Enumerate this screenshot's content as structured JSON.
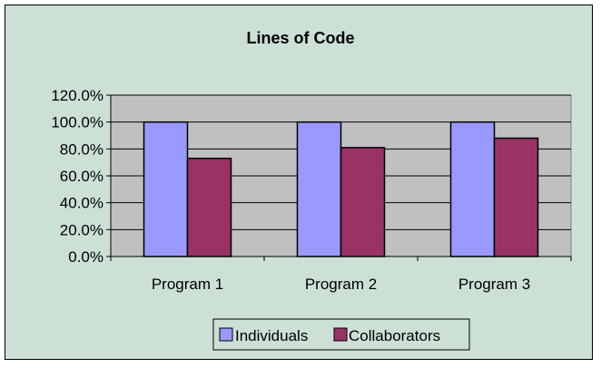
{
  "chart_data": {
    "type": "bar",
    "title": "Lines of Code",
    "categories": [
      "Program 1",
      "Program 2",
      "Program 3"
    ],
    "series": [
      {
        "name": "Individuals",
        "values": [
          100,
          100,
          100
        ],
        "color": "#9999ff"
      },
      {
        "name": "Collaborators",
        "values": [
          73,
          81,
          88
        ],
        "color": "#993366"
      }
    ],
    "ylim": [
      0,
      120
    ],
    "yticks": [
      "0.0%",
      "20.0%",
      "40.0%",
      "60.0%",
      "80.0%",
      "100.0%",
      "120.0%"
    ],
    "grid": true,
    "legend_position": "bottom",
    "plot_background": "#c0c0c0",
    "chart_background": "#cce0d6"
  }
}
